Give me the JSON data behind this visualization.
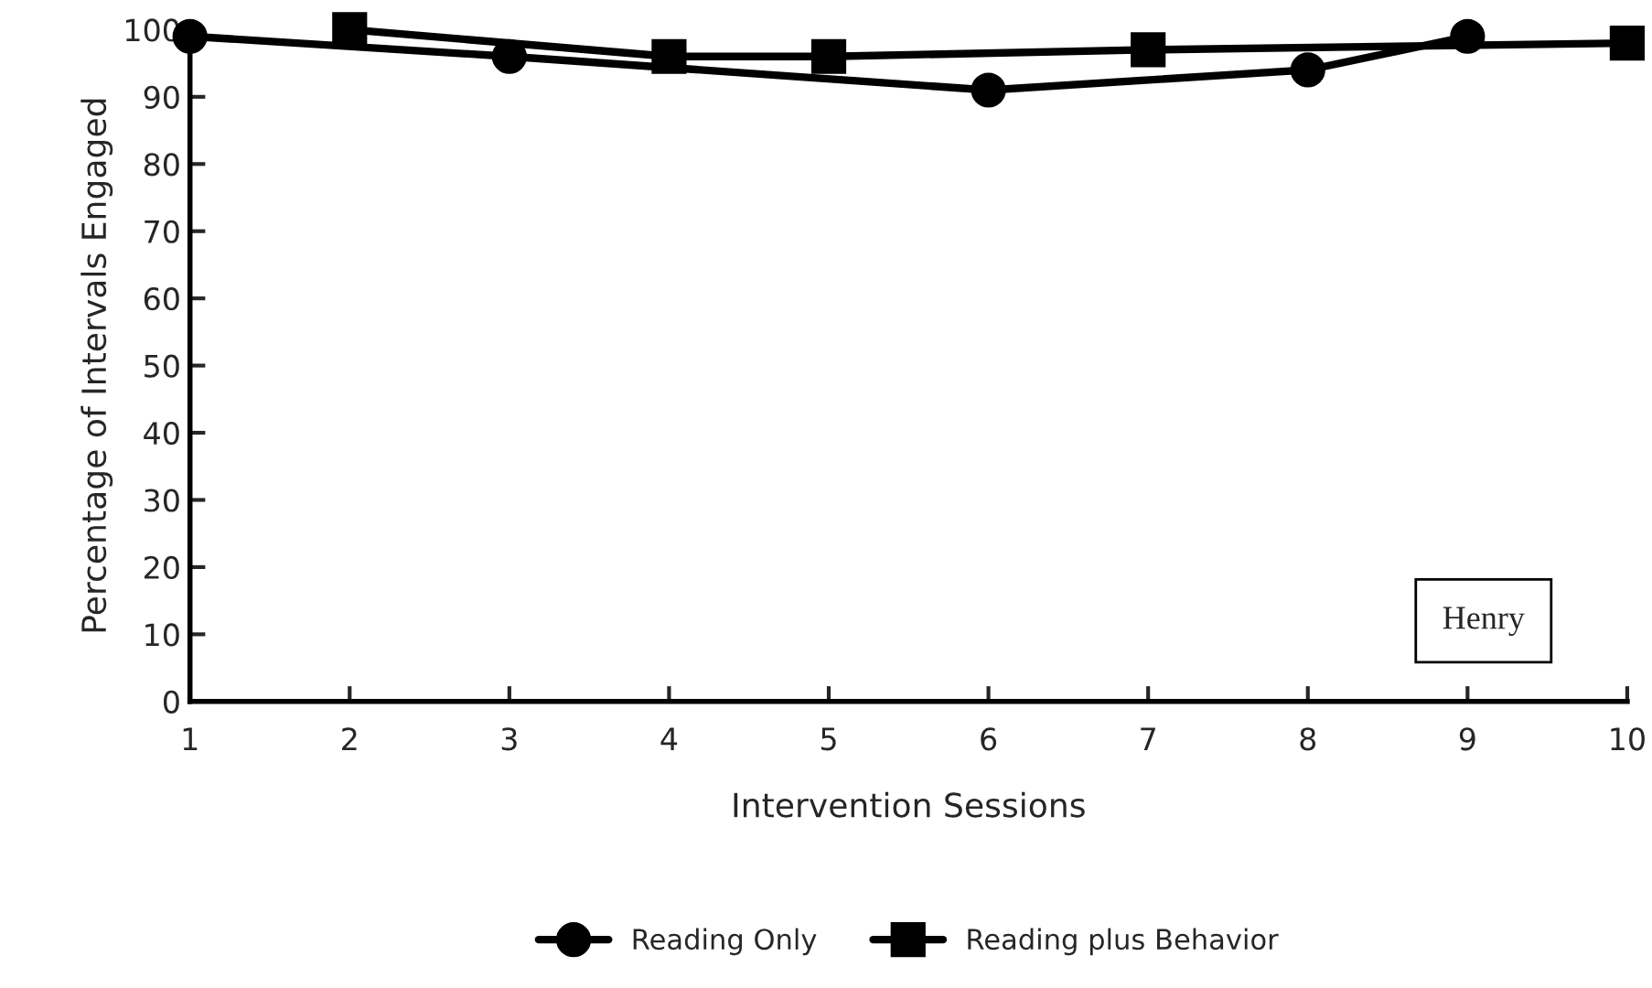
{
  "chart_data": {
    "type": "line",
    "xlabel": "Intervention Sessions",
    "ylabel": "Percentage of Intervals Engaged",
    "xlim": [
      1,
      10
    ],
    "xticks": [
      1,
      2,
      3,
      4,
      5,
      6,
      7,
      8,
      9,
      10
    ],
    "ylim": [
      0,
      100
    ],
    "yticks": [
      0,
      10,
      20,
      30,
      40,
      50,
      60,
      70,
      80,
      90,
      100
    ],
    "series": [
      {
        "name": "Reading Only",
        "color": "#000000",
        "marker": "circle",
        "x": [
          1,
          3,
          6,
          8,
          9
        ],
        "values": [
          99,
          96,
          91,
          94,
          99
        ]
      },
      {
        "name": "Reading plus Behavior",
        "color": "#000000",
        "marker": "square",
        "x": [
          2,
          4,
          5,
          7,
          10
        ],
        "values": [
          100,
          96,
          96,
          97,
          98
        ]
      }
    ],
    "annotations": [
      "Henry"
    ],
    "legend": "bottom",
    "grid": false,
    "line_style": "solid"
  }
}
